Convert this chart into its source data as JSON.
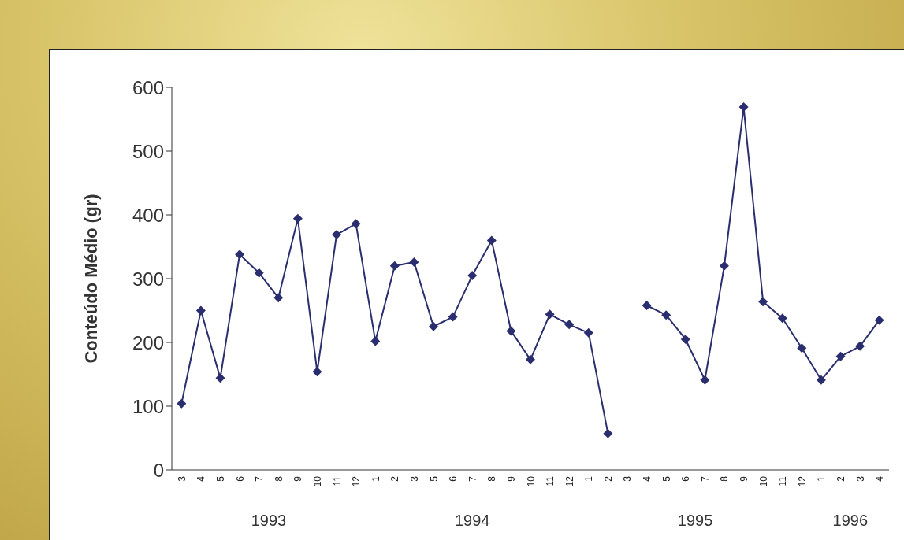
{
  "chart_data": {
    "type": "line",
    "ylabel": "Conteúdo Médio (gr)",
    "categories": [
      "3",
      "4",
      "5",
      "6",
      "7",
      "8",
      "9",
      "10",
      "11",
      "12",
      "1",
      "2",
      "3",
      "5",
      "6",
      "7",
      "8",
      "9",
      "10",
      "11",
      "12",
      "1",
      "2",
      "3",
      "4",
      "5",
      "6",
      "7",
      "8",
      "9",
      "10",
      "11",
      "12",
      "1",
      "2",
      "3",
      "4"
    ],
    "series": [
      {
        "color": "#2b2e6e",
        "values": [
          104,
          250,
          144,
          338,
          309,
          270,
          394,
          154,
          369,
          386,
          202,
          320,
          326,
          225,
          240,
          305,
          360,
          218,
          173,
          244,
          228,
          215,
          57,
          null,
          258,
          243,
          205,
          141,
          320,
          569,
          264,
          238,
          191,
          141,
          178,
          194,
          235
        ]
      }
    ],
    "annotations": [
      "1993",
      "1994",
      "1995",
      "1996"
    ],
    "ylim": [
      0,
      600
    ],
    "yticks": [
      0,
      100,
      200,
      300,
      400,
      500,
      600
    ],
    "marker": "diamond",
    "line_style": "solid",
    "legend": false,
    "grid": false
  }
}
